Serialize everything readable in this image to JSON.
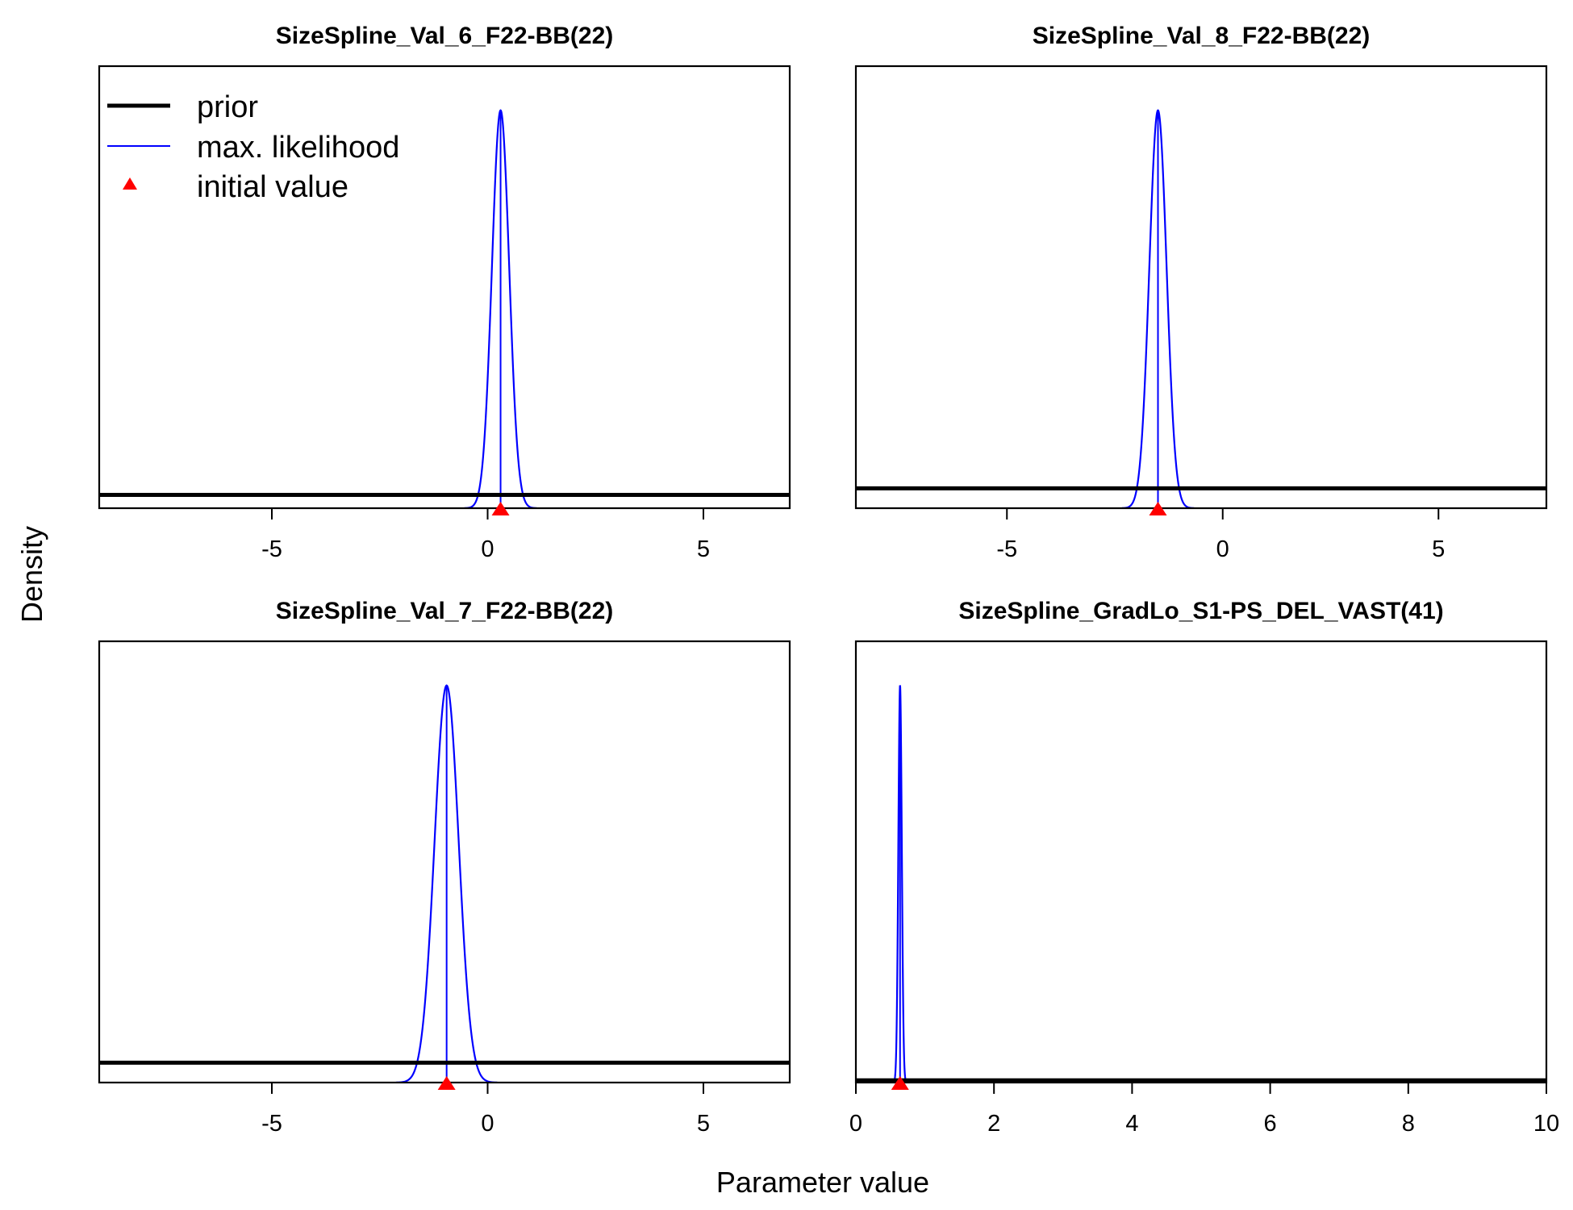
{
  "figure": {
    "xlabel": "Parameter value",
    "ylabel": "Density"
  },
  "legend": {
    "position": "top-left of first panel",
    "entries": [
      {
        "key": "prior",
        "label": "prior",
        "color": "#000000",
        "kind": "line-thick"
      },
      {
        "key": "mle",
        "label": "max. likelihood",
        "color": "#0000ff",
        "kind": "line"
      },
      {
        "key": "init",
        "label": "initial value",
        "color": "#ff0000",
        "kind": "triangle"
      }
    ]
  },
  "colors": {
    "prior": "#000000",
    "mle": "#0000ff",
    "initial": "#ff0000"
  },
  "chart_data": [
    {
      "type": "line",
      "title": "SizeSpline_Val_6_F22-BB(22)",
      "xlim": [
        -9,
        7
      ],
      "xticks": [
        -5,
        0,
        5
      ],
      "mle": {
        "mean": 0.3,
        "sd": 0.2
      },
      "prior_level": 0.03,
      "initial_value": 0.3,
      "grid": false
    },
    {
      "type": "line",
      "title": "SizeSpline_Val_8_F22-BB(22)",
      "xlim": [
        -8.5,
        7.5
      ],
      "xticks": [
        -5,
        0,
        5
      ],
      "mle": {
        "mean": -1.5,
        "sd": 0.2
      },
      "prior_level": 0.045,
      "initial_value": -1.5,
      "grid": false
    },
    {
      "type": "line",
      "title": "SizeSpline_Val_7_F22-BB(22)",
      "xlim": [
        -9,
        7
      ],
      "xticks": [
        -5,
        0,
        5
      ],
      "mle": {
        "mean": -0.95,
        "sd": 0.28
      },
      "prior_level": 0.045,
      "initial_value": -0.95,
      "grid": false
    },
    {
      "type": "line",
      "title": "SizeSpline_GradLo_S1-PS_DEL_VAST(41)",
      "xlim": [
        0,
        10
      ],
      "xticks": [
        0,
        2,
        4,
        6,
        8,
        10
      ],
      "mle": {
        "mean": 0.64,
        "sd": 0.025
      },
      "prior_level": 0.005,
      "initial_value": 0.64,
      "grid": false
    }
  ]
}
